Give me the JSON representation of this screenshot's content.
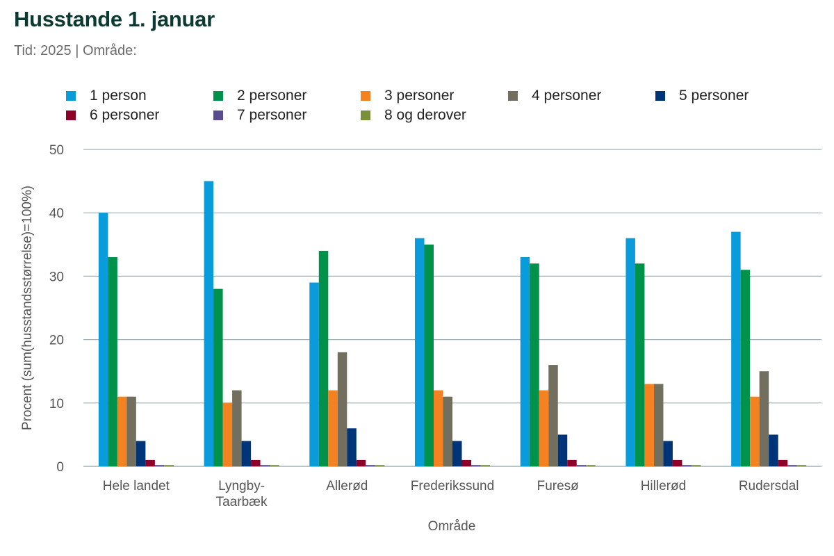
{
  "header": {
    "title": "Husstande 1. januar",
    "subtitle": "Tid: 2025 | Område:"
  },
  "colors": {
    "grid": "#9fb0b8",
    "axis": "#9fb0b8"
  },
  "chart_data": {
    "type": "bar",
    "title": "Husstande 1. januar",
    "subtitle": "Tid: 2025 | Område:",
    "xlabel": "Område",
    "ylabel": "Procent (sum(husstandsstørrelse)=100%)",
    "ylim": [
      0,
      50
    ],
    "yticks": [
      0,
      10,
      20,
      30,
      40,
      50
    ],
    "grid": true,
    "legend_position": "top",
    "categories": [
      [
        "Hele landet"
      ],
      [
        "Lyngby-",
        "Taarbæk"
      ],
      [
        "Allerød"
      ],
      [
        "Frederikssund"
      ],
      [
        "Furesø"
      ],
      [
        "Hillerød"
      ],
      [
        "Rudersdal"
      ]
    ],
    "series": [
      {
        "name": "1 person",
        "color": "#0a9bdb",
        "values": [
          40,
          45,
          29,
          36,
          33,
          36,
          37
        ]
      },
      {
        "name": "2 personer",
        "color": "#00914a",
        "values": [
          33,
          28,
          34,
          35,
          32,
          32,
          31
        ]
      },
      {
        "name": "3 personer",
        "color": "#f58220",
        "values": [
          11,
          10,
          12,
          12,
          12,
          13,
          11
        ]
      },
      {
        "name": "4 personer",
        "color": "#736f5e",
        "values": [
          11,
          12,
          18,
          11,
          16,
          13,
          15
        ]
      },
      {
        "name": "5 personer",
        "color": "#003479",
        "values": [
          4,
          4,
          6,
          4,
          5,
          4,
          5
        ]
      },
      {
        "name": "6 personer",
        "color": "#8f0029",
        "values": [
          1,
          1,
          1,
          1,
          1,
          1,
          1
        ]
      },
      {
        "name": "7 personer",
        "color": "#5b4c8f",
        "values": [
          0.2,
          0.2,
          0.2,
          0.2,
          0.2,
          0.2,
          0.2
        ]
      },
      {
        "name": "8 og derover",
        "color": "#7a8f3c",
        "values": [
          0.2,
          0.2,
          0.2,
          0.2,
          0.2,
          0.2,
          0.2
        ]
      }
    ]
  }
}
